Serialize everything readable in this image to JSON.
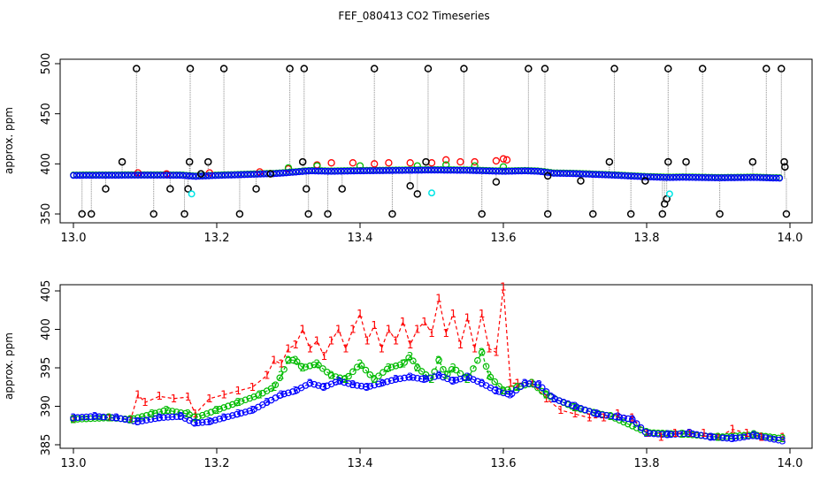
{
  "title": "FEF_080413  CO2 Timeseries",
  "colors": {
    "series1": "#ff0000",
    "series2": "#00bb00",
    "series3": "#0000ff",
    "black": "#000000",
    "cyan": "#00e5e5",
    "dotted": "#8a8a8a"
  },
  "chart_data": [
    {
      "type": "scatter",
      "ylabel": "approx. ppm",
      "xlabel": "",
      "xlim": [
        13.0,
        14.0
      ],
      "ylim": [
        350,
        500
      ],
      "xticks": [
        "13.0",
        "13.2",
        "13.4",
        "13.6",
        "13.8",
        "14.0"
      ],
      "yticks": [
        "350",
        "400",
        "450",
        "500"
      ],
      "grid": false,
      "black_points": [
        [
          13.012,
          350
        ],
        [
          13.025,
          350
        ],
        [
          13.045,
          375
        ],
        [
          13.068,
          402
        ],
        [
          13.088,
          495
        ],
        [
          13.112,
          350
        ],
        [
          13.135,
          375
        ],
        [
          13.155,
          350
        ],
        [
          13.16,
          375
        ],
        [
          13.162,
          402
        ],
        [
          13.163,
          495
        ],
        [
          13.178,
          390
        ],
        [
          13.188,
          402
        ],
        [
          13.21,
          495
        ],
        [
          13.232,
          350
        ],
        [
          13.255,
          375
        ],
        [
          13.275,
          390
        ],
        [
          13.302,
          495
        ],
        [
          13.32,
          402
        ],
        [
          13.322,
          495
        ],
        [
          13.325,
          375
        ],
        [
          13.328,
          350
        ],
        [
          13.355,
          350
        ],
        [
          13.375,
          375
        ],
        [
          13.42,
          495
        ],
        [
          13.445,
          350
        ],
        [
          13.47,
          378
        ],
        [
          13.48,
          370
        ],
        [
          13.495,
          495
        ],
        [
          13.492,
          402
        ],
        [
          13.545,
          495
        ],
        [
          13.57,
          350
        ],
        [
          13.59,
          382
        ],
        [
          13.635,
          495
        ],
        [
          13.658,
          495
        ],
        [
          13.662,
          350
        ],
        [
          13.662,
          388
        ],
        [
          13.708,
          383
        ],
        [
          13.725,
          350
        ],
        [
          13.748,
          402
        ],
        [
          13.755,
          495
        ],
        [
          13.778,
          350
        ],
        [
          13.798,
          383
        ],
        [
          13.822,
          350
        ],
        [
          13.825,
          360
        ],
        [
          13.828,
          365
        ],
        [
          13.83,
          402
        ],
        [
          13.83,
          495
        ],
        [
          13.855,
          402
        ],
        [
          13.878,
          495
        ],
        [
          13.902,
          350
        ],
        [
          13.948,
          402
        ],
        [
          13.967,
          495
        ],
        [
          13.988,
          495
        ],
        [
          13.992,
          402
        ],
        [
          13.993,
          397
        ],
        [
          13.995,
          350
        ]
      ],
      "cyan_points": [
        [
          13.165,
          370
        ],
        [
          13.5,
          371
        ],
        [
          13.832,
          370
        ]
      ],
      "red_points": [
        [
          13.09,
          391
        ],
        [
          13.13,
          390
        ],
        [
          13.19,
          391
        ],
        [
          13.26,
          392
        ],
        [
          13.3,
          395
        ],
        [
          13.34,
          399
        ],
        [
          13.36,
          401
        ],
        [
          13.39,
          401
        ],
        [
          13.42,
          400
        ],
        [
          13.44,
          401
        ],
        [
          13.47,
          401
        ],
        [
          13.5,
          401
        ],
        [
          13.52,
          404
        ],
        [
          13.54,
          402
        ],
        [
          13.56,
          402
        ],
        [
          13.59,
          403
        ],
        [
          13.6,
          405
        ],
        [
          13.605,
          404
        ]
      ],
      "green_points": [
        [
          13.3,
          396
        ],
        [
          13.34,
          398
        ],
        [
          13.4,
          398
        ],
        [
          13.48,
          398
        ],
        [
          13.52,
          399
        ],
        [
          13.56,
          398
        ],
        [
          13.6,
          397
        ]
      ],
      "blue_series": {
        "x": [
          13.0,
          13.05,
          13.1,
          13.15,
          13.17,
          13.2,
          13.25,
          13.28,
          13.3,
          13.33,
          13.36,
          13.4,
          13.45,
          13.5,
          13.55,
          13.6,
          13.63,
          13.65,
          13.67,
          13.7,
          13.75,
          13.8,
          13.83,
          13.85,
          13.9,
          13.95,
          13.99
        ],
        "y": [
          388.5,
          388.6,
          388.7,
          388.6,
          387.5,
          388.4,
          389.5,
          390.2,
          391.2,
          393.0,
          392.5,
          393.0,
          393.4,
          393.8,
          393.5,
          392.5,
          393.0,
          392.5,
          390.6,
          390.2,
          388.8,
          387.0,
          386.3,
          386.6,
          386.0,
          386.4,
          385.6
        ]
      }
    },
    {
      "type": "line",
      "ylabel": "approx. ppm",
      "xlabel": "",
      "xlim": [
        13.0,
        14.0
      ],
      "ylim": [
        385,
        405
      ],
      "xticks": [
        "13.0",
        "13.2",
        "13.4",
        "13.6",
        "13.8",
        "14.0"
      ],
      "yticks": [
        "385",
        "390",
        "395",
        "400",
        "405"
      ],
      "grid": false,
      "series": [
        {
          "marker": "1",
          "x": [
            13.0,
            13.05,
            13.08,
            13.09,
            13.1,
            13.12,
            13.14,
            13.16,
            13.17,
            13.19,
            13.21,
            13.23,
            13.25,
            13.27,
            13.28,
            13.29,
            13.3,
            13.31,
            13.32,
            13.33,
            13.34,
            13.35,
            13.36,
            13.37,
            13.38,
            13.39,
            13.4,
            13.41,
            13.42,
            13.43,
            13.44,
            13.45,
            13.46,
            13.47,
            13.48,
            13.49,
            13.5,
            13.51,
            13.52,
            13.53,
            13.54,
            13.55,
            13.56,
            13.57,
            13.58,
            13.59,
            13.6,
            13.61,
            13.62,
            13.64,
            13.66,
            13.68,
            13.7,
            13.72,
            13.74,
            13.76,
            13.78,
            13.8,
            13.82,
            13.84,
            13.86,
            13.88,
            13.9,
            13.92,
            13.94,
            13.96,
            13.99
          ],
          "y": [
            388.3,
            388.5,
            388.3,
            391.5,
            390.5,
            391.3,
            391.0,
            391.2,
            389.0,
            391.0,
            391.5,
            392.0,
            392.5,
            394.0,
            396.0,
            395.5,
            397.5,
            398.0,
            400.0,
            397.5,
            398.5,
            396.5,
            398.5,
            400.0,
            397.5,
            400.0,
            402.0,
            398.5,
            400.5,
            397.5,
            400.0,
            398.5,
            401.0,
            398.0,
            400.0,
            401.0,
            399.5,
            404.0,
            399.5,
            402.0,
            398.0,
            401.5,
            397.5,
            402.0,
            397.5,
            397.0,
            405.5,
            393.0,
            393.0,
            393.0,
            391.0,
            389.5,
            389.0,
            388.5,
            388.5,
            389.0,
            388.5,
            386.5,
            386.0,
            386.5,
            386.5,
            386.5,
            386.0,
            387.0,
            386.5,
            386.0,
            386.0
          ]
        },
        {
          "marker": "2",
          "x": [
            13.0,
            13.05,
            13.08,
            13.11,
            13.13,
            13.16,
            13.17,
            13.2,
            13.23,
            13.26,
            13.28,
            13.29,
            13.3,
            13.31,
            13.32,
            13.34,
            13.36,
            13.38,
            13.4,
            13.42,
            13.44,
            13.46,
            13.47,
            13.48,
            13.5,
            13.51,
            13.52,
            13.53,
            13.55,
            13.57,
            13.58,
            13.6,
            13.62,
            13.64,
            13.66,
            13.7,
            13.75,
            13.8,
            13.85,
            13.9,
            13.95,
            13.99
          ],
          "y": [
            388.3,
            388.5,
            388.3,
            389.0,
            389.5,
            389.0,
            388.5,
            389.5,
            390.5,
            391.5,
            392.5,
            394.0,
            396.0,
            396.0,
            395.0,
            395.5,
            394.0,
            393.5,
            395.5,
            393.5,
            395.0,
            395.5,
            396.5,
            395.0,
            393.5,
            396.0,
            394.0,
            395.0,
            393.5,
            397.0,
            394.0,
            392.0,
            392.5,
            393.0,
            391.5,
            389.8,
            388.7,
            386.6,
            386.4,
            386.0,
            386.3,
            385.8
          ]
        },
        {
          "marker": "3",
          "x": [
            13.0,
            13.03,
            13.06,
            13.09,
            13.12,
            13.15,
            13.17,
            13.19,
            13.21,
            13.23,
            13.25,
            13.27,
            13.29,
            13.31,
            13.33,
            13.35,
            13.37,
            13.39,
            13.41,
            13.43,
            13.45,
            13.47,
            13.49,
            13.51,
            13.53,
            13.55,
            13.57,
            13.59,
            13.61,
            13.63,
            13.65,
            13.67,
            13.7,
            13.73,
            13.76,
            13.78,
            13.8,
            13.83,
            13.86,
            13.89,
            13.92,
            13.95,
            13.99
          ],
          "y": [
            388.5,
            388.7,
            388.5,
            388.0,
            388.5,
            388.7,
            387.8,
            388.0,
            388.5,
            389.0,
            389.5,
            390.5,
            391.5,
            392.0,
            393.0,
            392.5,
            393.3,
            392.8,
            392.5,
            393.0,
            393.5,
            393.8,
            393.5,
            394.0,
            393.3,
            393.8,
            393.0,
            392.0,
            391.5,
            393.0,
            392.8,
            391.0,
            390.0,
            389.0,
            388.6,
            388.3,
            386.5,
            386.3,
            386.5,
            386.0,
            385.8,
            386.2,
            385.5
          ]
        }
      ]
    }
  ]
}
